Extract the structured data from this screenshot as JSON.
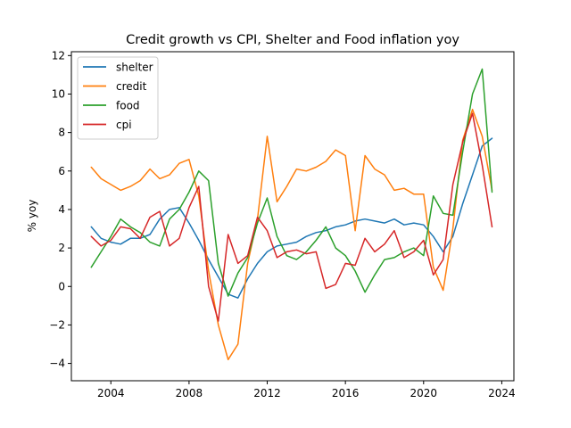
{
  "chart_data": {
    "type": "line",
    "title": "Credit growth vs CPI, Shelter and Food inflation yoy",
    "xlabel": "",
    "ylabel": "% yoy",
    "xlim": [
      2001.98,
      2024.62
    ],
    "ylim": [
      -4.9,
      12.2
    ],
    "x_ticks": [
      2004,
      2008,
      2012,
      2016,
      2020,
      2024
    ],
    "y_ticks": [
      -4,
      -2,
      0,
      2,
      4,
      6,
      8,
      10,
      12
    ],
    "grid": false,
    "legend_position": "top-left",
    "series": [
      {
        "name": "shelter",
        "color": "#1f77b4",
        "x": [
          2003.0,
          2003.5,
          2004.0,
          2004.5,
          2005.0,
          2005.5,
          2006.0,
          2006.5,
          2007.0,
          2007.5,
          2008.0,
          2008.5,
          2009.0,
          2009.5,
          2010.0,
          2010.5,
          2011.0,
          2011.5,
          2012.0,
          2012.5,
          2013.0,
          2013.5,
          2014.0,
          2014.5,
          2015.0,
          2015.5,
          2016.0,
          2016.5,
          2017.0,
          2017.5,
          2018.0,
          2018.5,
          2019.0,
          2019.5,
          2020.0,
          2020.5,
          2021.0,
          2021.5,
          2022.0,
          2022.5,
          2023.0,
          2023.5
        ],
        "values": [
          3.1,
          2.5,
          2.3,
          2.2,
          2.5,
          2.5,
          2.7,
          3.5,
          4.0,
          4.1,
          3.3,
          2.4,
          1.4,
          0.5,
          -0.4,
          -0.6,
          0.4,
          1.2,
          1.8,
          2.1,
          2.2,
          2.3,
          2.6,
          2.8,
          2.9,
          3.1,
          3.2,
          3.4,
          3.5,
          3.4,
          3.3,
          3.5,
          3.2,
          3.3,
          3.2,
          2.6,
          1.8,
          2.6,
          4.3,
          5.8,
          7.3,
          7.7
        ]
      },
      {
        "name": "credit",
        "color": "#ff7f0e",
        "x": [
          2003.0,
          2003.5,
          2004.0,
          2004.5,
          2005.0,
          2005.5,
          2006.0,
          2006.5,
          2007.0,
          2007.5,
          2008.0,
          2008.5,
          2009.0,
          2009.5,
          2010.0,
          2010.5,
          2011.0,
          2011.5,
          2012.0,
          2012.5,
          2013.0,
          2013.5,
          2014.0,
          2014.5,
          2015.0,
          2015.5,
          2016.0,
          2016.5,
          2017.0,
          2017.5,
          2018.0,
          2018.5,
          2019.0,
          2019.5,
          2020.0,
          2020.5,
          2021.0,
          2021.5,
          2022.0,
          2022.5,
          2023.0,
          2023.5
        ],
        "values": [
          6.2,
          5.6,
          5.3,
          5.0,
          5.2,
          5.5,
          6.1,
          5.6,
          5.8,
          6.4,
          6.6,
          4.7,
          0.8,
          -2.0,
          -3.8,
          -3.0,
          1.2,
          3.5,
          7.8,
          4.4,
          5.2,
          6.1,
          6.0,
          6.2,
          6.5,
          7.1,
          6.8,
          2.9,
          6.8,
          6.1,
          5.8,
          5.0,
          5.1,
          4.8,
          4.8,
          1.0,
          -0.2,
          3.0,
          7.6,
          9.2,
          7.8,
          5.0
        ]
      },
      {
        "name": "food",
        "color": "#2ca02c",
        "x": [
          2003.0,
          2003.5,
          2004.0,
          2004.5,
          2005.0,
          2005.5,
          2006.0,
          2006.5,
          2007.0,
          2007.5,
          2008.0,
          2008.5,
          2009.0,
          2009.5,
          2010.0,
          2010.5,
          2011.0,
          2011.5,
          2012.0,
          2012.5,
          2013.0,
          2013.5,
          2014.0,
          2014.5,
          2015.0,
          2015.5,
          2016.0,
          2016.5,
          2017.0,
          2017.5,
          2018.0,
          2018.5,
          2019.0,
          2019.5,
          2020.0,
          2020.5,
          2021.0,
          2021.5,
          2022.0,
          2022.5,
          2023.0,
          2023.5
        ],
        "values": [
          1.0,
          1.8,
          2.6,
          3.5,
          3.1,
          2.8,
          2.3,
          2.1,
          3.5,
          4.0,
          4.9,
          6.0,
          5.5,
          1.2,
          -0.5,
          0.7,
          1.5,
          3.3,
          4.6,
          2.6,
          1.6,
          1.4,
          1.8,
          2.4,
          3.1,
          2.0,
          1.6,
          0.8,
          -0.3,
          0.6,
          1.4,
          1.5,
          1.8,
          2.0,
          1.6,
          4.7,
          3.8,
          3.7,
          7.0,
          10.0,
          11.3,
          4.9
        ]
      },
      {
        "name": "cpi",
        "color": "#d62728",
        "x": [
          2003.0,
          2003.5,
          2004.0,
          2004.5,
          2005.0,
          2005.5,
          2006.0,
          2006.5,
          2007.0,
          2007.5,
          2008.0,
          2008.5,
          2009.0,
          2009.5,
          2010.0,
          2010.5,
          2011.0,
          2011.5,
          2012.0,
          2012.5,
          2013.0,
          2013.5,
          2014.0,
          2014.5,
          2015.0,
          2015.5,
          2016.0,
          2016.5,
          2017.0,
          2017.5,
          2018.0,
          2018.5,
          2019.0,
          2019.5,
          2020.0,
          2020.5,
          2021.0,
          2021.5,
          2022.0,
          2022.5,
          2023.0,
          2023.5
        ],
        "values": [
          2.6,
          2.1,
          2.4,
          3.1,
          3.0,
          2.5,
          3.6,
          3.9,
          2.1,
          2.5,
          4.1,
          5.2,
          0.0,
          -1.8,
          2.7,
          1.2,
          1.6,
          3.6,
          2.9,
          1.5,
          1.8,
          1.9,
          1.7,
          1.8,
          -0.1,
          0.1,
          1.2,
          1.1,
          2.5,
          1.8,
          2.2,
          2.9,
          1.5,
          1.8,
          2.4,
          0.6,
          1.4,
          5.3,
          7.5,
          9.0,
          6.3,
          3.1
        ]
      }
    ]
  }
}
